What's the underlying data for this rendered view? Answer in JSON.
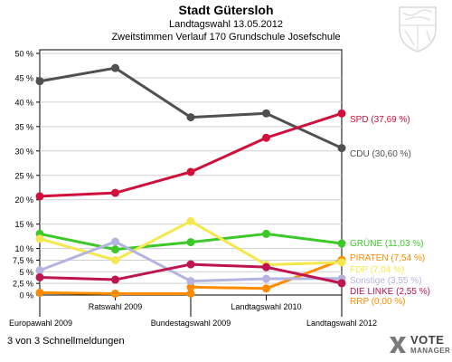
{
  "header": {
    "title": "Stadt Gütersloh",
    "subtitle": "Landtagswahl 13.05.2012",
    "subtitle2": "Zweitstimmen Verlauf 170 Grundschule Josefschule"
  },
  "footer": {
    "text": "3 von 3 Schnellmeldungen"
  },
  "logo": {
    "top": "VOTE",
    "bottom": "MANAGER"
  },
  "chart_data": {
    "type": "line",
    "categories": [
      "Europawahl 2009",
      "Ratswahl 2009",
      "Bundestagswahl 2009",
      "Landtagswahl 2010",
      "Landtagswahl 2012"
    ],
    "y_tick_labels": [
      "0 %",
      "2,5 %",
      "5 %",
      "7,5 %",
      "10 %",
      "15 %",
      "20 %",
      "25 %",
      "30 %",
      "35 %",
      "40 %",
      "45 %",
      "50 %"
    ],
    "ylim": [
      0,
      50
    ],
    "y_scale": "piecewise: 0–10 % stretched, 10–50 % compressed",
    "grid": "horizontal",
    "series": [
      {
        "name": "CDU (30,60 %)",
        "color": "#505050",
        "values": [
          44.3,
          47.0,
          36.9,
          37.7,
          30.6
        ]
      },
      {
        "name": "SPD (37,69 %)",
        "color": "#d0103a",
        "values": [
          20.7,
          21.4,
          25.7,
          32.7,
          37.69
        ]
      },
      {
        "name": "GRÜNE (11,03 %)",
        "color": "#3cc828",
        "values": [
          13.0,
          9.8,
          11.3,
          13.0,
          11.03
        ]
      },
      {
        "name": "PIRATEN (7,54 %)",
        "color": "#ff8c00",
        "values": [
          null,
          null,
          1.7,
          1.4,
          7.54
        ]
      },
      {
        "name": "FDP (7,04 %)",
        "color": "#f4e84c",
        "values": [
          12.0,
          7.5,
          15.6,
          6.5,
          7.04
        ]
      },
      {
        "name": "Sonstige (3,55 %)",
        "color": "#b4b4e0",
        "values": [
          5.3,
          11.4,
          3.0,
          3.5,
          3.55
        ]
      },
      {
        "name": "DIE LINKE (2,55 %)",
        "color": "#be1450",
        "values": [
          3.8,
          3.3,
          6.6,
          6.0,
          2.55
        ]
      },
      {
        "name": "RRP (0,00 %)",
        "color": "#ff8c00",
        "values": [
          0.5,
          0.3,
          0.3,
          null,
          null
        ]
      }
    ]
  }
}
